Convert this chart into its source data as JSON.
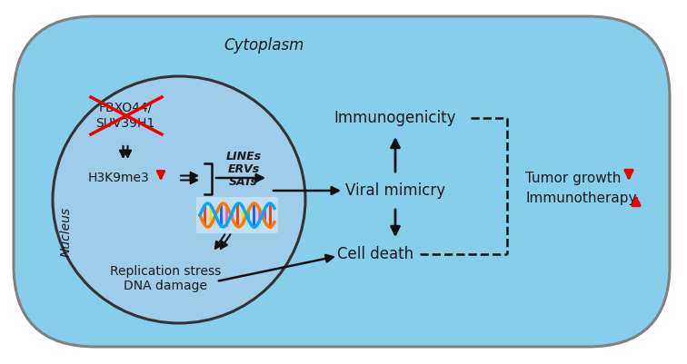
{
  "bg_color": "#ffffff",
  "cell_color": "#87CEEB",
  "nucleus_color": "#9DCDE8",
  "cell_edge_color": "#808080",
  "nucleus_edge_color": "#333333",
  "text_color": "#1a1a1a",
  "red_color": "#EE0000",
  "arrow_color": "#111111",
  "figsize": [
    7.56,
    4.01
  ],
  "dpi": 100,
  "cytoplasm_label": "Cytoplasm",
  "nucleus_label": "Nucleus",
  "fbxo44_line1": "FBXO44/",
  "fbxo44_line2": "SUV39H1",
  "h3k9me3": "H3K9me3",
  "lines_label": "LINEs",
  "ervs_label": "ERVs",
  "sats_label": "SATs",
  "viral_mimicry": "Viral mimicry",
  "immunogenicity": "Immunogenicity",
  "cell_death": "Cell death",
  "replication_stress": "Replication stress",
  "dna_damage": "DNA damage",
  "tumor_growth": "Tumor growth",
  "immunotherapy": "Immunotherapy"
}
